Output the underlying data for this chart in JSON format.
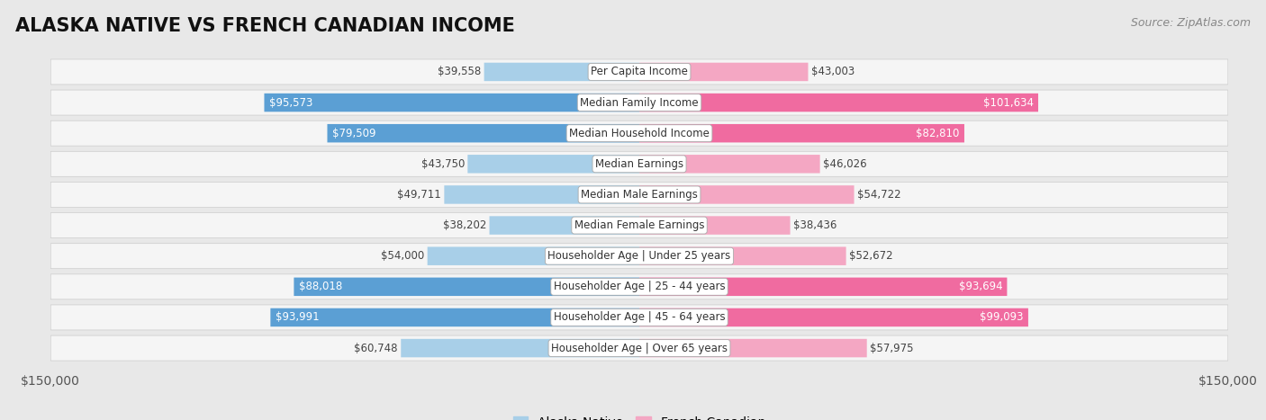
{
  "title": "ALASKA NATIVE VS FRENCH CANADIAN INCOME",
  "source": "Source: ZipAtlas.com",
  "categories": [
    "Per Capita Income",
    "Median Family Income",
    "Median Household Income",
    "Median Earnings",
    "Median Male Earnings",
    "Median Female Earnings",
    "Householder Age | Under 25 years",
    "Householder Age | 25 - 44 years",
    "Householder Age | 45 - 64 years",
    "Householder Age | Over 65 years"
  ],
  "alaska_native": [
    39558,
    95573,
    79509,
    43750,
    49711,
    38202,
    54000,
    88018,
    93991,
    60748
  ],
  "french_canadian": [
    43003,
    101634,
    82810,
    46026,
    54722,
    38436,
    52672,
    93694,
    99093,
    57975
  ],
  "alaska_color_light": "#a8cfe8",
  "alaska_color_strong": "#5b9fd4",
  "french_color_light": "#f4a7c3",
  "french_color_strong": "#f06ba0",
  "alaska_label": "Alaska Native",
  "french_label": "French Canadian",
  "max_val": 150000,
  "xlabel_left": "$150,000",
  "xlabel_right": "$150,000",
  "background_color": "#e8e8e8",
  "row_bg_color": "#f5f5f5",
  "title_fontsize": 15,
  "source_fontsize": 9,
  "tick_fontsize": 10,
  "cat_fontsize": 8.5,
  "value_fontsize": 8.5,
  "large_threshold": 70000
}
